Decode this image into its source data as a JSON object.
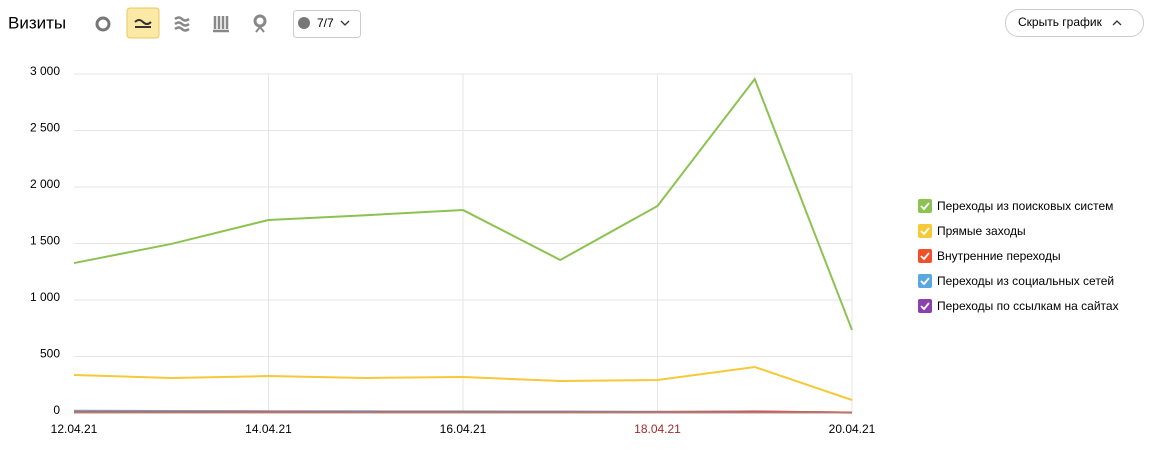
{
  "toolbar": {
    "title": "Визиты",
    "segments": "7/7",
    "hide_button": "Скрыть график"
  },
  "chart_data": {
    "type": "line",
    "categories": [
      "12.04.21",
      null,
      "14.04.21",
      null,
      "16.04.21",
      null,
      "18.04.21",
      null,
      "20.04.21"
    ],
    "highlighted_categories": [
      6
    ],
    "highlight_color": "#a52a2a",
    "ylim": [
      0,
      3000
    ],
    "yticks": [
      0,
      500,
      {
        "value": 1000,
        "label": "1 000"
      },
      {
        "value": 1500,
        "label": "1 500"
      },
      {
        "value": 2000,
        "label": "2 000"
      },
      {
        "value": 2500,
        "label": "2 500"
      },
      {
        "value": 3000,
        "label": "3 000"
      }
    ],
    "grid": true,
    "legend": "right",
    "series": [
      {
        "name": "Переходы из поисковых систем",
        "color": "#8cc350",
        "values": [
          1327,
          1496,
          1708,
          1750,
          1796,
          1354,
          1832,
          2956,
          735
        ]
      },
      {
        "name": "Прямые заходы",
        "color": "#f5c938",
        "values": [
          336,
          310,
          327,
          310,
          319,
          283,
          292,
          407,
          115
        ]
      },
      {
        "name": "Внутренние переходы",
        "color": "#f1502b",
        "values": [
          8,
          7,
          8,
          6,
          7,
          5,
          6,
          9,
          3
        ]
      },
      {
        "name": "Переходы из социальных сетей",
        "color": "#5ba7e0",
        "values": [
          20,
          18,
          16,
          15,
          14,
          13,
          11,
          12,
          4
        ]
      },
      {
        "name": "Переходы по ссылкам на сайтах",
        "color": "#8d3fab",
        "values": [
          12,
          11,
          10,
          10,
          11,
          9,
          8,
          14,
          3
        ]
      }
    ]
  }
}
